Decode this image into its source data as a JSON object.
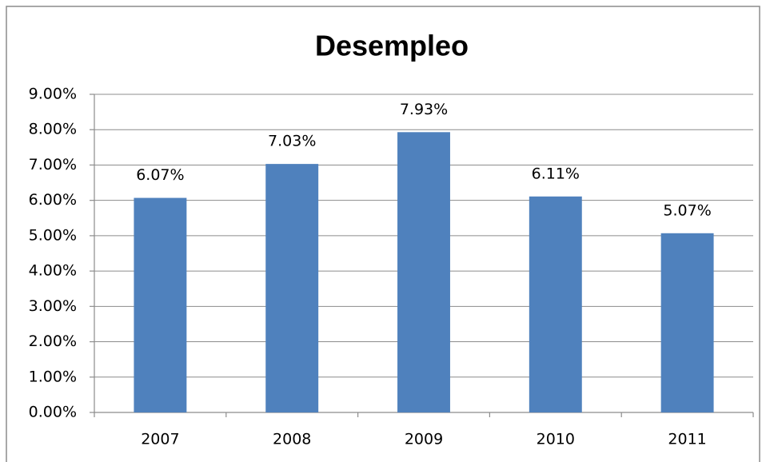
{
  "chart_data": {
    "type": "bar",
    "title": "Desempleo",
    "categories": [
      "2007",
      "2008",
      "2009",
      "2010",
      "2011"
    ],
    "values": [
      6.07,
      7.03,
      7.93,
      6.11,
      5.07
    ],
    "value_labels": [
      "6.07%",
      "7.03%",
      "7.93%",
      "6.11%",
      "5.07%"
    ],
    "color": "#4f81bd",
    "ylim": [
      0,
      9
    ],
    "yticks": [
      {
        "value": 0,
        "label": "0.00%"
      },
      {
        "value": 1,
        "label": "1.00%"
      },
      {
        "value": 2,
        "label": "2.00%"
      },
      {
        "value": 3,
        "label": "3.00%"
      },
      {
        "value": 4,
        "label": "4.00%"
      },
      {
        "value": 5,
        "label": "5.00%"
      },
      {
        "value": 6,
        "label": "6.00%"
      },
      {
        "value": 7,
        "label": "7.00%"
      },
      {
        "value": 8,
        "label": "8.00%"
      },
      {
        "value": 9,
        "label": "9.00%"
      }
    ],
    "grid": true
  }
}
